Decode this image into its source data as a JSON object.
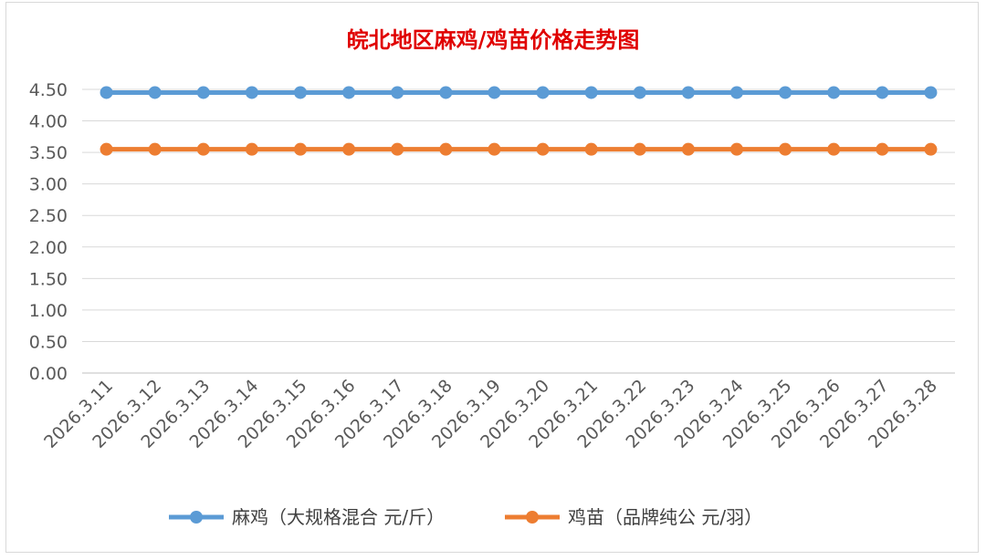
{
  "chart_data": {
    "type": "line",
    "title": "皖北地区麻鸡/鸡苗价格走势图",
    "title_color": "#E00000",
    "categories": [
      "2026.3.11",
      "2026.3.12",
      "2026.3.13",
      "2026.3.14",
      "2026.3.15",
      "2026.3.16",
      "2026.3.17",
      "2026.3.18",
      "2026.3.19",
      "2026.3.20",
      "2026.3.21",
      "2026.3.22",
      "2026.3.23",
      "2026.3.24",
      "2026.3.25",
      "2026.3.26",
      "2026.3.27",
      "2026.3.28"
    ],
    "series": [
      {
        "name": "麻鸡（大规格混合 元/斤）",
        "color": "#5B9BD5",
        "values": [
          4.45,
          4.45,
          4.45,
          4.45,
          4.45,
          4.45,
          4.45,
          4.45,
          4.45,
          4.45,
          4.45,
          4.45,
          4.45,
          4.45,
          4.45,
          4.45,
          4.45,
          4.45
        ]
      },
      {
        "name": "鸡苗（品牌纯公 元/羽）",
        "color": "#ED7D31",
        "values": [
          3.55,
          3.55,
          3.55,
          3.55,
          3.55,
          3.55,
          3.55,
          3.55,
          3.55,
          3.55,
          3.55,
          3.55,
          3.55,
          3.55,
          3.55,
          3.55,
          3.55,
          3.55
        ]
      }
    ],
    "yticks": [
      "0.00",
      "0.50",
      "1.00",
      "1.50",
      "2.00",
      "2.50",
      "3.00",
      "3.50",
      "4.00",
      "4.50"
    ],
    "ylim": [
      0,
      4.5
    ],
    "grid": true,
    "legend": "bottom",
    "xlabel": "",
    "ylabel": ""
  }
}
